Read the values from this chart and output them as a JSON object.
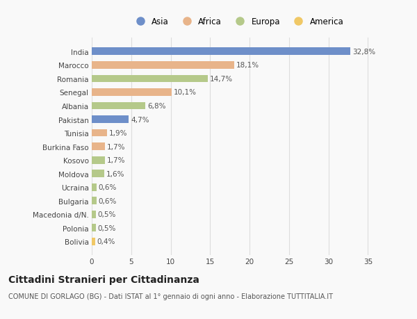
{
  "categories": [
    "India",
    "Marocco",
    "Romania",
    "Senegal",
    "Albania",
    "Pakistan",
    "Tunisia",
    "Burkina Faso",
    "Kosovo",
    "Moldova",
    "Ucraina",
    "Bulgaria",
    "Macedonia d/N.",
    "Polonia",
    "Bolivia"
  ],
  "values": [
    32.8,
    18.1,
    14.7,
    10.1,
    6.8,
    4.7,
    1.9,
    1.7,
    1.7,
    1.6,
    0.6,
    0.6,
    0.5,
    0.5,
    0.4
  ],
  "labels": [
    "32,8%",
    "18,1%",
    "14,7%",
    "10,1%",
    "6,8%",
    "4,7%",
    "1,9%",
    "1,7%",
    "1,7%",
    "1,6%",
    "0,6%",
    "0,6%",
    "0,5%",
    "0,5%",
    "0,4%"
  ],
  "colors": [
    "#6e8fc9",
    "#e8b48a",
    "#b5c98a",
    "#e8b48a",
    "#b5c98a",
    "#6e8fc9",
    "#e8b48a",
    "#e8b48a",
    "#b5c98a",
    "#b5c98a",
    "#b5c98a",
    "#b5c98a",
    "#b5c98a",
    "#b5c98a",
    "#f0c866"
  ],
  "legend_labels": [
    "Asia",
    "Africa",
    "Europa",
    "America"
  ],
  "legend_colors": [
    "#6e8fc9",
    "#e8b48a",
    "#b5c98a",
    "#f0c866"
  ],
  "title": "Cittadini Stranieri per Cittadinanza",
  "subtitle": "COMUNE DI GORLAGO (BG) - Dati ISTAT al 1° gennaio di ogni anno - Elaborazione TUTTITALIA.IT",
  "xlim": [
    0,
    37
  ],
  "xticks": [
    0,
    5,
    10,
    15,
    20,
    25,
    30,
    35
  ],
  "background_color": "#f9f9f9",
  "grid_color": "#dddddd",
  "bar_height": 0.55,
  "label_fontsize": 7.5,
  "tick_fontsize": 7.5,
  "title_fontsize": 10,
  "subtitle_fontsize": 7
}
